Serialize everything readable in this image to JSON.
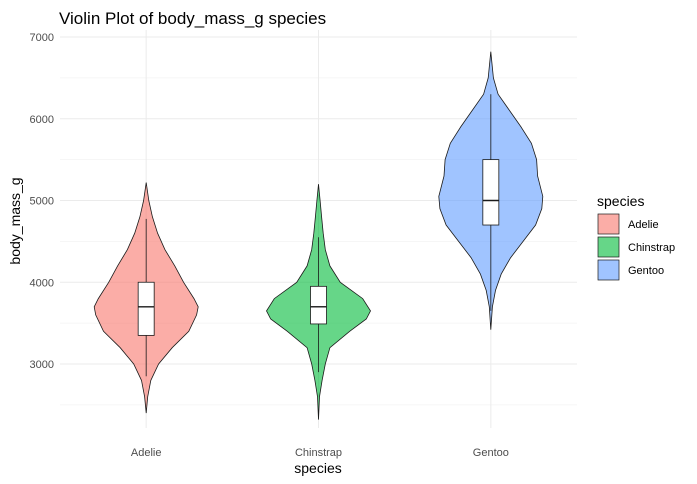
{
  "chart_data": {
    "type": "violin",
    "title": "Violin Plot of body_mass_g species",
    "xlabel": "species",
    "ylabel": "body_mass_g",
    "ylim": [
      2200,
      7000
    ],
    "yticks": [
      3000,
      4000,
      5000,
      6000,
      7000
    ],
    "grid": true,
    "legend": {
      "title": "species",
      "position": "right"
    },
    "categories": [
      "Adelie",
      "Chinstrap",
      "Gentoo"
    ],
    "colors": [
      "#F8766D",
      "#00BA38",
      "#619CFF"
    ],
    "series": [
      {
        "name": "Adelie",
        "min": 2850,
        "q1": 3350,
        "median": 3700,
        "q3": 4000,
        "max": 4775,
        "violin_min": 2400,
        "violin_max": 5220,
        "density": [
          [
            2400,
            0.0
          ],
          [
            2600,
            0.03
          ],
          [
            2800,
            0.09
          ],
          [
            3000,
            0.24
          ],
          [
            3200,
            0.5
          ],
          [
            3400,
            0.82
          ],
          [
            3600,
            0.97
          ],
          [
            3700,
            1.0
          ],
          [
            3800,
            0.92
          ],
          [
            4000,
            0.72
          ],
          [
            4200,
            0.55
          ],
          [
            4400,
            0.36
          ],
          [
            4600,
            0.22
          ],
          [
            4800,
            0.12
          ],
          [
            5000,
            0.05
          ],
          [
            5220,
            0.0
          ]
        ]
      },
      {
        "name": "Chinstrap",
        "min": 2900,
        "q1": 3490,
        "median": 3700,
        "q3": 3950,
        "max": 4550,
        "violin_min": 2320,
        "violin_max": 5200,
        "density": [
          [
            2320,
            0.0
          ],
          [
            2600,
            0.02
          ],
          [
            2800,
            0.07
          ],
          [
            3000,
            0.13
          ],
          [
            3200,
            0.22
          ],
          [
            3400,
            0.6
          ],
          [
            3550,
            0.92
          ],
          [
            3650,
            1.0
          ],
          [
            3800,
            0.85
          ],
          [
            4000,
            0.42
          ],
          [
            4200,
            0.22
          ],
          [
            4400,
            0.13
          ],
          [
            4600,
            0.09
          ],
          [
            4800,
            0.06
          ],
          [
            5000,
            0.03
          ],
          [
            5200,
            0.0
          ]
        ]
      },
      {
        "name": "Gentoo",
        "min": 3650,
        "q1": 4700,
        "median": 5000,
        "q3": 5500,
        "max": 6300,
        "violin_min": 3420,
        "violin_max": 6820,
        "density": [
          [
            3420,
            0.0
          ],
          [
            3700,
            0.03
          ],
          [
            3900,
            0.09
          ],
          [
            4100,
            0.2
          ],
          [
            4300,
            0.38
          ],
          [
            4500,
            0.62
          ],
          [
            4700,
            0.86
          ],
          [
            4900,
            0.98
          ],
          [
            5050,
            1.0
          ],
          [
            5300,
            0.9
          ],
          [
            5500,
            0.88
          ],
          [
            5700,
            0.78
          ],
          [
            5900,
            0.58
          ],
          [
            6100,
            0.36
          ],
          [
            6300,
            0.14
          ],
          [
            6500,
            0.05
          ],
          [
            6820,
            0.0
          ]
        ]
      }
    ]
  }
}
